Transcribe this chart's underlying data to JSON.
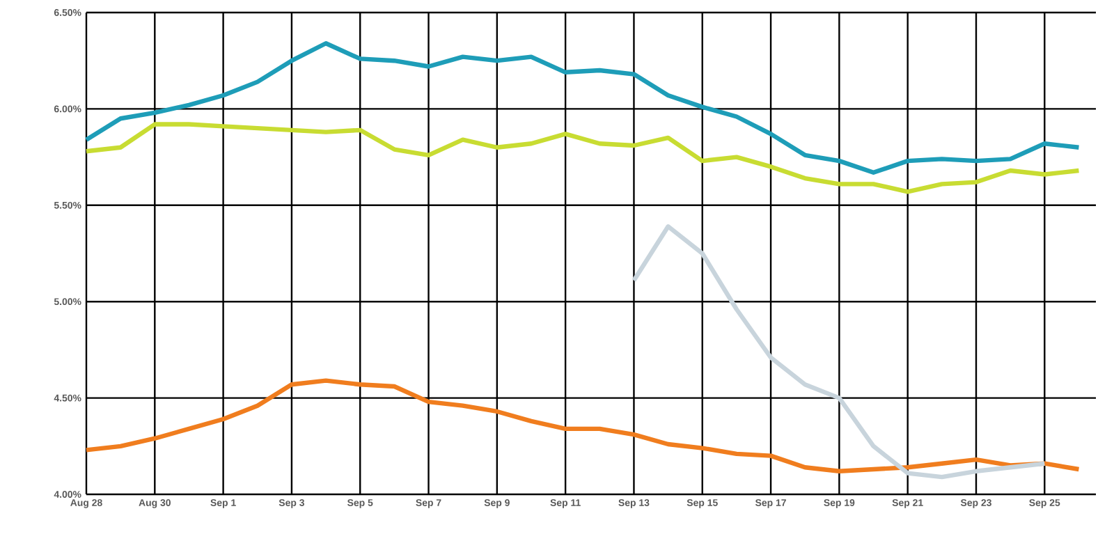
{
  "chart_data": {
    "type": "line",
    "categories": [
      "Aug 28",
      null,
      "Aug 30",
      null,
      "Sep 1",
      null,
      "Sep 3",
      null,
      "Sep 5",
      null,
      "Sep 7",
      null,
      "Sep 9",
      null,
      "Sep 11",
      null,
      "Sep 13",
      null,
      "Sep 15",
      null,
      "Sep 17",
      null,
      "Sep 19",
      null,
      "Sep 21",
      null,
      "Sep 23",
      null,
      "Sep 25",
      null
    ],
    "series": [
      {
        "color": "#1e9db8",
        "values": [
          5.84,
          5.95,
          5.98,
          6.02,
          6.07,
          6.14,
          6.25,
          6.34,
          6.26,
          6.25,
          6.22,
          6.27,
          6.25,
          6.27,
          6.19,
          6.2,
          6.18,
          6.07,
          6.01,
          5.96,
          5.87,
          5.76,
          5.73,
          5.67,
          5.73,
          5.74,
          5.73,
          5.74,
          5.82,
          5.8
        ]
      },
      {
        "color": "#c8dc32",
        "values": [
          5.78,
          5.8,
          5.92,
          5.92,
          5.91,
          5.9,
          5.89,
          5.88,
          5.89,
          5.79,
          5.76,
          5.84,
          5.8,
          5.82,
          5.87,
          5.82,
          5.81,
          5.85,
          5.73,
          5.75,
          5.7,
          5.64,
          5.61,
          5.61,
          5.57,
          5.61,
          5.62,
          5.68,
          5.66,
          5.68
        ]
      },
      {
        "color": "#f07d1e",
        "values": [
          4.23,
          4.25,
          4.29,
          4.34,
          4.39,
          4.46,
          4.57,
          4.59,
          4.57,
          4.56,
          4.48,
          4.46,
          4.43,
          4.38,
          4.34,
          4.34,
          4.31,
          4.26,
          4.24,
          4.21,
          4.2,
          4.14,
          4.12,
          4.13,
          4.14,
          4.16,
          4.18,
          4.15,
          4.16,
          4.13
        ]
      },
      {
        "color": "#c8d4dc",
        "values": [
          null,
          null,
          null,
          null,
          null,
          null,
          null,
          null,
          null,
          null,
          null,
          null,
          null,
          null,
          null,
          null,
          5.11,
          5.39,
          5.25,
          4.96,
          4.71,
          4.57,
          4.5,
          4.25,
          4.11,
          4.09,
          4.12,
          4.14,
          4.16,
          null
        ]
      }
    ],
    "ylim": [
      4.0,
      6.5
    ],
    "yticks": [
      {
        "value": 4.0,
        "label": "4.00%"
      },
      {
        "value": 4.5,
        "label": "4.50%"
      },
      {
        "value": 5.0,
        "label": "5.00%"
      },
      {
        "value": 5.5,
        "label": "5.50%"
      },
      {
        "value": 6.0,
        "label": "6.00%"
      },
      {
        "value": 6.5,
        "label": "6.50%"
      }
    ],
    "grid": true,
    "marker": "none",
    "line_style": "solid"
  }
}
